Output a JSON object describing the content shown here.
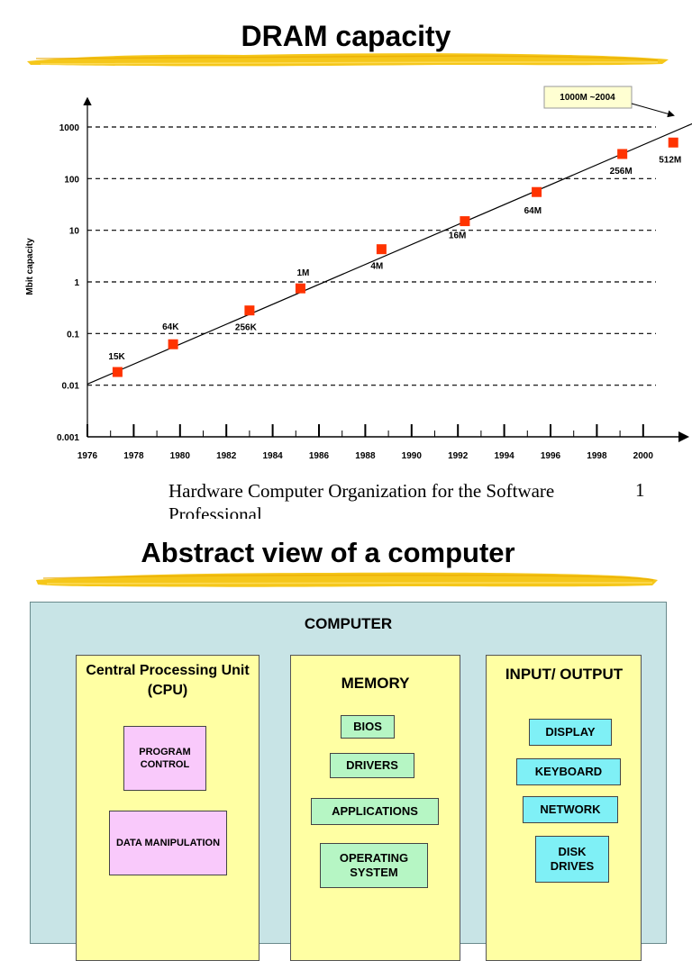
{
  "slide1": {
    "title": "DRAM capacity",
    "footer_text": "Hardware Computer Organization for the Software Professional",
    "page_number": "1"
  },
  "chart_data": {
    "type": "scatter",
    "title": "DRAM capacity",
    "xlabel": "",
    "ylabel": "Mbit capacity",
    "y_scale": "log",
    "xlim": [
      1976,
      2001
    ],
    "ylim": [
      0.001,
      1000
    ],
    "x_ticks": [
      "1976",
      "1978",
      "1980",
      "1982",
      "1984",
      "1986",
      "1988",
      "1990",
      "1992",
      "1994",
      "1996",
      "1998",
      "2000"
    ],
    "y_ticks": [
      "0.001",
      "0.01",
      "0.1",
      "1",
      "10",
      "100",
      "1000"
    ],
    "grid": "horizontal dashed",
    "points": [
      {
        "x": 1977.3,
        "y": 0.018,
        "label": "15K"
      },
      {
        "x": 1979.7,
        "y": 0.062,
        "label": "64K"
      },
      {
        "x": 1983.0,
        "y": 0.28,
        "label": "256K"
      },
      {
        "x": 1985.2,
        "y": 0.75,
        "label": "1M"
      },
      {
        "x": 1988.7,
        "y": 4.3,
        "label": "4M"
      },
      {
        "x": 1992.3,
        "y": 15,
        "label": "16M"
      },
      {
        "x": 1995.4,
        "y": 55,
        "label": "64M"
      },
      {
        "x": 1999.1,
        "y": 300,
        "label": "256M"
      },
      {
        "x": 2001.3,
        "y": 500,
        "label": "512M"
      }
    ],
    "trend_line": {
      "x": [
        1976,
        2002.2
      ],
      "y": [
        0.0105,
        1200
      ]
    },
    "callout": "1000M ~2004",
    "marker_color": "#ff3300"
  },
  "slide2": {
    "title": "Abstract view of a computer",
    "computer_label": "COMPUTER",
    "cpu": {
      "title": "Central Processing Unit (CPU)",
      "items": [
        "PROGRAM CONTROL",
        "DATA MANIPULATION"
      ]
    },
    "memory": {
      "title": "MEMORY",
      "items": [
        "BIOS",
        "DRIVERS",
        "APPLICATIONS",
        "OPERATING SYSTEM"
      ]
    },
    "io": {
      "title": "INPUT/ OUTPUT",
      "items": [
        "DISPLAY",
        "KEYBOARD",
        "NETWORK",
        "DISK DRIVES"
      ]
    },
    "colors": {
      "outer_box": "#c8e4e6",
      "panel": "#ffffa3",
      "pink": "#f9c9fb",
      "green": "#b6f6c4",
      "cyan": "#7ff0f6",
      "brush": "#f5c71a"
    }
  }
}
